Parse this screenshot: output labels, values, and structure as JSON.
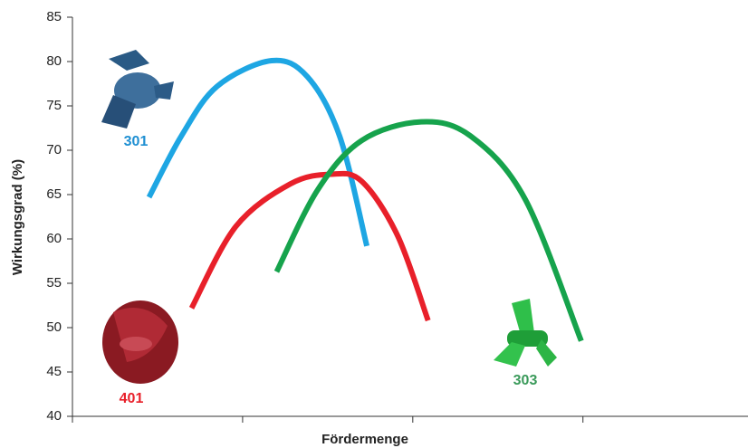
{
  "chart_data": {
    "type": "line",
    "x_label": "Fördermenge",
    "y_label": "Wirkungsgrad (%)",
    "xlim": [
      0,
      3.97
    ],
    "xticks": [
      0,
      1,
      2,
      3
    ],
    "ylim": [
      40,
      85
    ],
    "yticks": [
      40,
      45,
      50,
      55,
      60,
      65,
      70,
      75,
      80,
      85
    ],
    "series": [
      {
        "name": "301",
        "color": "#1ea6e3",
        "label_color": "#1e8fd2",
        "x": [
          0.45,
          0.64,
          0.85,
          1.17,
          1.38,
          1.57,
          1.73
        ],
        "values": [
          64.7,
          71.6,
          77.2,
          80.1,
          78.3,
          71.6,
          59.2
        ]
      },
      {
        "name": "401",
        "color": "#e8202a",
        "label_color": "#e8202a",
        "x": [
          0.7,
          0.96,
          1.28,
          1.52,
          1.7,
          1.91,
          2.09
        ],
        "values": [
          52.2,
          61.4,
          66.2,
          67.3,
          66.5,
          60.4,
          50.8
        ]
      },
      {
        "name": "303",
        "color": "#16a34c",
        "label_color": "#3a9a5a",
        "x": [
          1.2,
          1.44,
          1.7,
          2.05,
          2.34,
          2.66,
          2.99
        ],
        "values": [
          56.3,
          65.5,
          71.1,
          73.2,
          71.6,
          64.5,
          48.5
        ]
      }
    ]
  }
}
